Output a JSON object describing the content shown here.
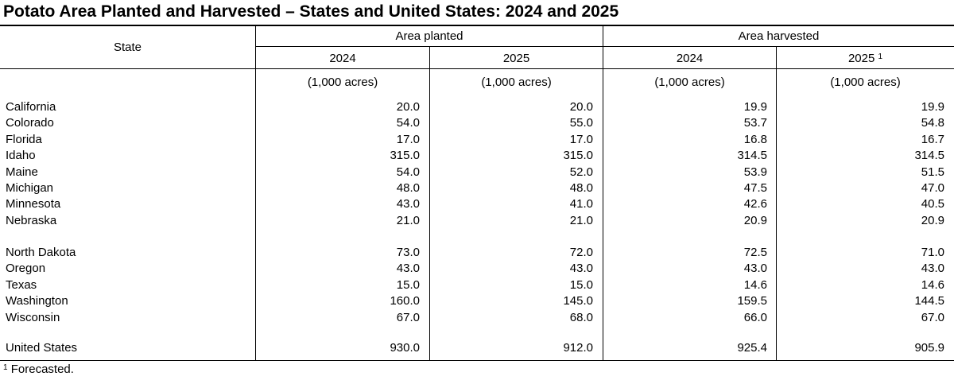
{
  "title": "Potato Area Planted and Harvested – States and United States: 2024 and 2025",
  "header": {
    "state_label": "State",
    "group_planted": "Area planted",
    "group_harvested": "Area harvested",
    "years": [
      "2024",
      "2025",
      "2024",
      "2025"
    ],
    "footnote_marker": "1",
    "units": "(1,000 acres)"
  },
  "dots": "..................................................................................................................",
  "rows_group1": [
    {
      "state": "California",
      "values": [
        "20.0",
        "20.0",
        "19.9",
        "19.9"
      ]
    },
    {
      "state": "Colorado",
      "values": [
        "54.0",
        "55.0",
        "53.7",
        "54.8"
      ]
    },
    {
      "state": "Florida",
      "values": [
        "17.0",
        "17.0",
        "16.8",
        "16.7"
      ]
    },
    {
      "state": "Idaho",
      "values": [
        "315.0",
        "315.0",
        "314.5",
        "314.5"
      ]
    },
    {
      "state": "Maine",
      "values": [
        "54.0",
        "52.0",
        "53.9",
        "51.5"
      ]
    },
    {
      "state": "Michigan",
      "values": [
        "48.0",
        "48.0",
        "47.5",
        "47.0"
      ]
    },
    {
      "state": "Minnesota",
      "values": [
        "43.0",
        "41.0",
        "42.6",
        "40.5"
      ]
    },
    {
      "state": "Nebraska",
      "values": [
        "21.0",
        "21.0",
        "20.9",
        "20.9"
      ]
    }
  ],
  "rows_group2": [
    {
      "state": "North Dakota",
      "values": [
        "73.0",
        "72.0",
        "72.5",
        "71.0"
      ]
    },
    {
      "state": "Oregon",
      "values": [
        "43.0",
        "43.0",
        "43.0",
        "43.0"
      ]
    },
    {
      "state": "Texas",
      "values": [
        "15.0",
        "15.0",
        "14.6",
        "14.6"
      ]
    },
    {
      "state": "Washington",
      "values": [
        "160.0",
        "145.0",
        "159.5",
        "144.5"
      ]
    },
    {
      "state": "Wisconsin",
      "values": [
        "67.0",
        "68.0",
        "66.0",
        "67.0"
      ]
    }
  ],
  "total_row": {
    "state": "United States",
    "values": [
      "930.0",
      "912.0",
      "925.4",
      "905.9"
    ]
  },
  "footnote": {
    "marker": "1",
    "text": "Forecasted."
  }
}
